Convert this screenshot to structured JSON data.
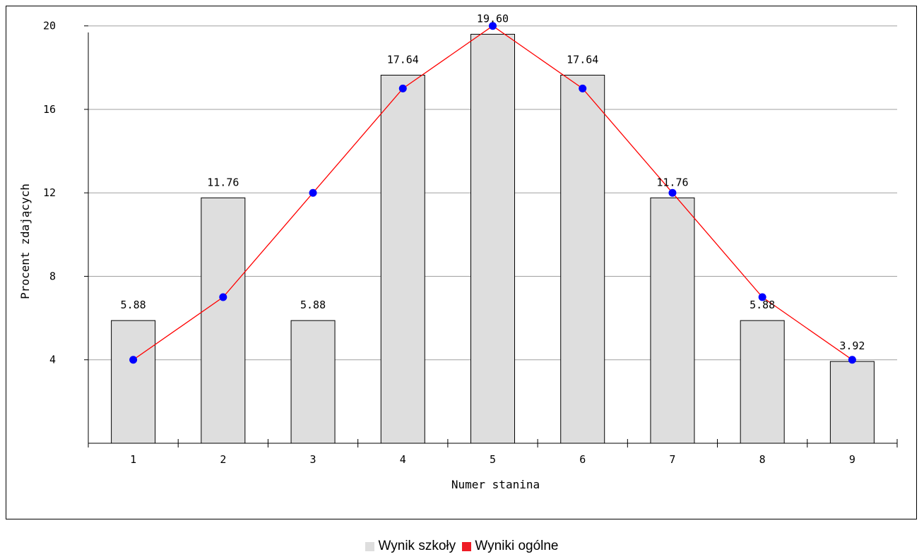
{
  "chart_data": {
    "type": "bar",
    "title": "",
    "xlabel": "Numer stanina",
    "ylabel": "Procent zdających",
    "categories": [
      "1",
      "2",
      "3",
      "4",
      "5",
      "6",
      "7",
      "8",
      "9"
    ],
    "ylim": [
      0,
      20.7
    ],
    "yticks": [
      "4",
      "8",
      "12",
      "16",
      "20"
    ],
    "grid": true,
    "series": [
      {
        "name": "Wynik szkoły",
        "type": "bar",
        "color": "#dedede",
        "values": [
          5.88,
          11.76,
          5.88,
          17.64,
          19.6,
          17.64,
          11.76,
          5.88,
          3.92
        ],
        "labels": [
          "5.88",
          "11.76",
          "5.88",
          "17.64",
          "19.60",
          "17.64",
          "11.76",
          "5.88",
          "3.92"
        ]
      },
      {
        "name": "Wyniki ogólne",
        "type": "line",
        "color": "#ff0000",
        "marker_color": "#0000ff",
        "values": [
          4,
          7,
          12,
          17,
          20,
          17,
          12,
          7,
          4
        ]
      }
    ],
    "legend_position": "bottom"
  }
}
